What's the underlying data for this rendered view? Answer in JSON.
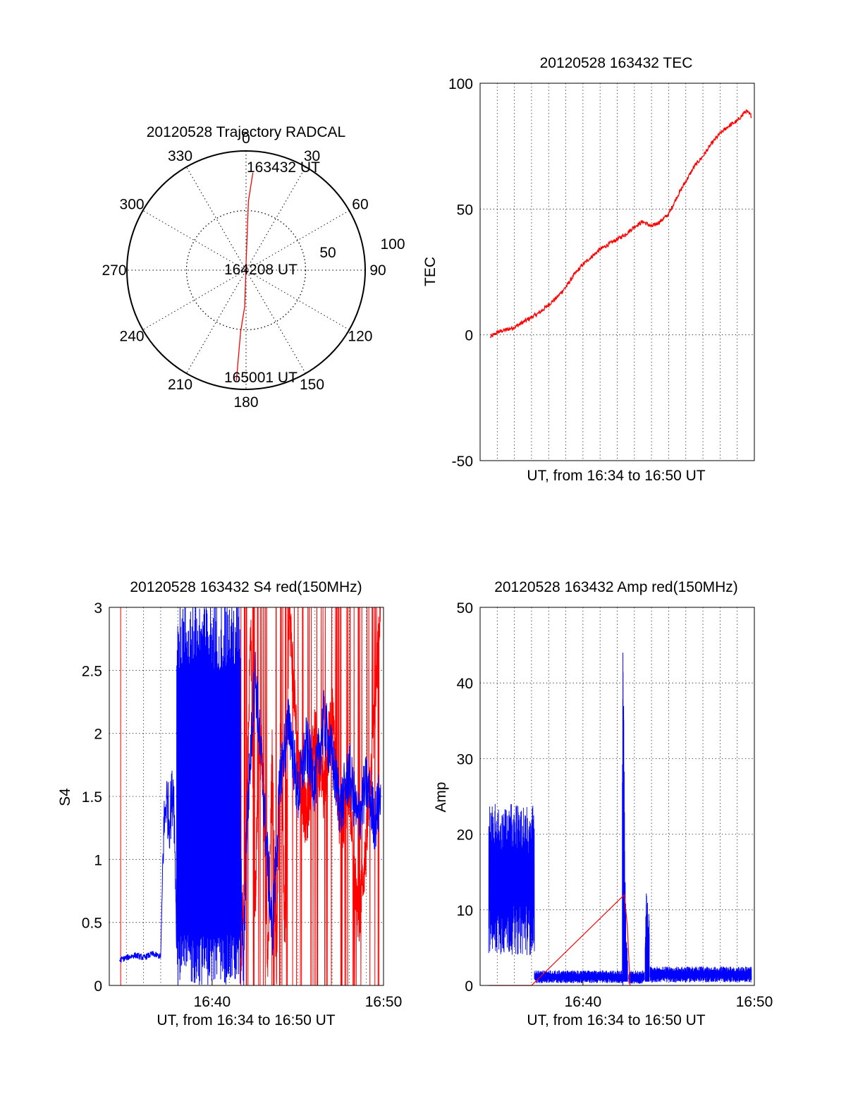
{
  "colors": {
    "red_series": "#ff0000",
    "blue_series": "#0000ff",
    "axis": "#000000",
    "grid": "#000000"
  },
  "chart_data": [
    {
      "id": "trajectory",
      "type": "polar",
      "title": "20120528 Trajectory RADCAL",
      "angle_labels": [
        "0",
        "30",
        "60",
        "90",
        "120",
        "150",
        "180",
        "210",
        "240",
        "270",
        "300",
        "330"
      ],
      "radius_labels": [
        "50",
        "100"
      ],
      "rlim": [
        0,
        100
      ],
      "rings": [
        50,
        100
      ],
      "grid": true,
      "series": [
        {
          "color": "red",
          "points": [
            [
              4,
              82
            ],
            [
              2,
              58
            ],
            [
              0,
              5
            ],
            [
              182,
              30
            ],
            [
              185,
              52
            ],
            [
              185,
              93
            ]
          ]
        }
      ],
      "annotations": [
        {
          "text": "163432 UT",
          "point": [
            4,
            82
          ]
        },
        {
          "text": "164208 UT",
          "point": [
            0,
            5
          ]
        },
        {
          "text": "165001 UT",
          "point": [
            185,
            93
          ]
        }
      ]
    },
    {
      "id": "tec",
      "type": "line",
      "title": "20120528 163432 TEC",
      "xlabel": "UT, from 16:34 to 16:50 UT",
      "ylabel": "TEC",
      "xlim": [
        "16:34",
        "16:50"
      ],
      "ylim": [
        -50,
        100
      ],
      "yticks": [
        "-50",
        "0",
        "50",
        "100"
      ],
      "xticks": [],
      "grid": true,
      "series": [
        {
          "color": "red",
          "x": [
            "16:34:36",
            "16:35:00",
            "16:35:30",
            "16:36:00",
            "16:36:30",
            "16:37:00",
            "16:37:30",
            "16:38:00",
            "16:38:30",
            "16:39:00",
            "16:39:30",
            "16:40:00",
            "16:40:30",
            "16:41:00",
            "16:41:30",
            "16:42:00",
            "16:42:30",
            "16:43:00",
            "16:43:30",
            "16:44:00",
            "16:44:30",
            "16:45:00",
            "16:45:30",
            "16:46:00",
            "16:46:30",
            "16:47:00",
            "16:47:30",
            "16:48:00",
            "16:48:30",
            "16:49:00",
            "16:49:30",
            "16:49:50"
          ],
          "y": [
            -1,
            1,
            2,
            3,
            5,
            7,
            9,
            12,
            15,
            19,
            24,
            28,
            31,
            34,
            36,
            38,
            40,
            43,
            45,
            43,
            45,
            48,
            55,
            61,
            67,
            71,
            76,
            80,
            83,
            85,
            89,
            87
          ]
        }
      ]
    },
    {
      "id": "s4",
      "type": "line",
      "title": "20120528 163432 S4 red(150MHz)",
      "xlabel": "UT, from 16:34 to 16:50 UT",
      "ylabel": "S4",
      "xlim": [
        "16:34",
        "16:50"
      ],
      "ylim": [
        0,
        3
      ],
      "yticks": [
        "0",
        "0.5",
        "1",
        "1.5",
        "2",
        "2.5",
        "3"
      ],
      "xticks": [
        "16:40",
        "16:50"
      ],
      "grid": true,
      "series": [
        {
          "color": "blue",
          "x": [
            "16:34:36",
            "16:35:00",
            "16:35:30",
            "16:36:00",
            "16:36:30",
            "16:37:00",
            "16:37:10",
            "16:37:20",
            "16:37:30",
            "16:37:45",
            "16:38:00",
            "16:38:15",
            "16:38:30",
            "16:39:00",
            "16:39:30",
            "16:40:00",
            "16:40:30",
            "16:41:00",
            "16:41:30",
            "16:41:50",
            "16:42:00",
            "16:42:30",
            "16:43:00",
            "16:43:30",
            "16:44:00",
            "16:44:30",
            "16:45:00",
            "16:45:30",
            "16:46:00",
            "16:46:30",
            "16:47:00",
            "16:47:30",
            "16:48:00",
            "16:48:30",
            "16:49:00",
            "16:49:30",
            "16:49:50"
          ],
          "y": [
            0.2,
            0.22,
            0.24,
            0.22,
            0.25,
            0.23,
            1.2,
            1.5,
            1.3,
            1.6,
            0,
            3,
            1.5,
            3,
            0.2,
            2.4,
            0.2,
            3,
            1.8,
            0.1,
            1.2,
            2.5,
            1.5,
            0.4,
            1.7,
            2.1,
            1.5,
            1.9,
            1.6,
            2.1,
            1.8,
            1.4,
            1.7,
            1.3,
            1.6,
            1.3,
            1.5
          ]
        },
        {
          "color": "red",
          "x": [
            "16:34:40",
            "16:41:40",
            "16:42:00",
            "16:42:15",
            "16:42:30",
            "16:42:45",
            "16:43:00",
            "16:43:15",
            "16:43:30",
            "16:43:45",
            "16:44:00",
            "16:44:15",
            "16:44:30",
            "16:45:00",
            "16:45:30",
            "16:46:00",
            "16:46:30",
            "16:47:00",
            "16:47:30",
            "16:48:00",
            "16:48:30",
            "16:49:00",
            "16:49:30",
            "16:49:50"
          ],
          "y": [
            3,
            0.2,
            1.2,
            2.9,
            0.6,
            2.0,
            1.6,
            0.15,
            1.8,
            0.15,
            2.2,
            0.3,
            3,
            1.8,
            1.3,
            2.0,
            1.5,
            2.2,
            1.2,
            1.6,
            0.5,
            1.1,
            2.2,
            3
          ]
        }
      ]
    },
    {
      "id": "amp",
      "type": "line",
      "title": "20120528 163432 Amp red(150MHz)",
      "xlabel": "UT, from 16:34 to 16:50 UT",
      "ylabel": "Amp",
      "xlim": [
        "16:34",
        "16:50"
      ],
      "ylim": [
        0,
        50
      ],
      "yticks": [
        "0",
        "10",
        "20",
        "30",
        "40",
        "50"
      ],
      "xticks": [
        "16:40",
        "16:50"
      ],
      "grid": true,
      "series": [
        {
          "color": "blue",
          "x": [
            "16:34:30",
            "16:35:00",
            "16:35:30",
            "16:36:00",
            "16:36:30",
            "16:37:00",
            "16:37:10",
            "16:38:00",
            "16:39:00",
            "16:40:00",
            "16:41:00",
            "16:42:00",
            "16:42:20",
            "16:42:25",
            "16:42:30",
            "16:42:40",
            "16:43:00",
            "16:43:30",
            "16:43:40",
            "16:43:50",
            "16:44:00",
            "16:44:30",
            "16:45:00",
            "16:46:00",
            "16:47:00",
            "16:48:00",
            "16:49:00",
            "16:49:50"
          ],
          "y": [
            12,
            13,
            12,
            11,
            12,
            11,
            1,
            1,
            1,
            1,
            1,
            1,
            44,
            30,
            9,
            1,
            1,
            1,
            13,
            10,
            1,
            1,
            1,
            1,
            1,
            1,
            1,
            1
          ]
        },
        {
          "color": "red",
          "x": [
            "16:34:30",
            "16:37:00",
            "16:42:25",
            "16:42:35",
            "16:42:45"
          ],
          "y": [
            0,
            0,
            12,
            8,
            0
          ]
        }
      ],
      "noise_bands": [
        {
          "from": "16:34:30",
          "to": "16:37:10",
          "low": 4,
          "high": 24
        },
        {
          "from": "16:37:10",
          "to": "16:42:20",
          "low": 0.3,
          "high": 2
        },
        {
          "from": "16:42:40",
          "to": "16:43:35",
          "low": 0.2,
          "high": 2
        },
        {
          "from": "16:43:55",
          "to": "16:49:50",
          "low": 0.4,
          "high": 2.5
        }
      ]
    }
  ]
}
